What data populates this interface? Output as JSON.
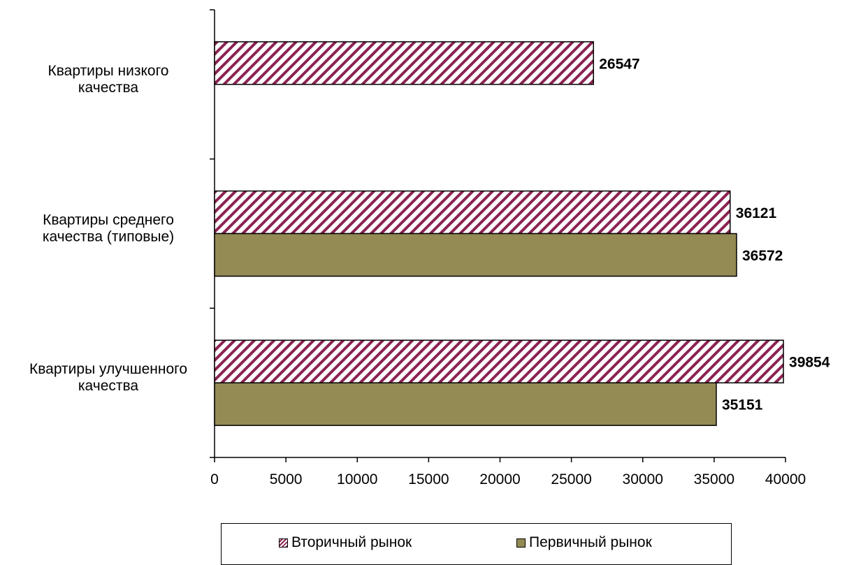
{
  "chart_data": {
    "type": "bar",
    "orientation": "horizontal",
    "categories": [
      "Квартиры низкого качества",
      "Квартиры среднего качества (типовые)",
      "Квартиры улучшенного качества"
    ],
    "category_label_lines": [
      [
        "Квартиры низкого",
        "качества"
      ],
      [
        "Квартиры среднего",
        "качества (типовые)"
      ],
      [
        "Квартиры улучшенного",
        "качества"
      ]
    ],
    "series": [
      {
        "name": "Вторичный рынок",
        "values": [
          26547,
          36121,
          39854
        ],
        "color": "#8b2252",
        "pattern": "diagonal-hatch"
      },
      {
        "name": "Первичный рынок",
        "values": [
          null,
          36572,
          35151
        ],
        "color": "#948a54",
        "pattern": "solid"
      }
    ],
    "xlim": [
      0,
      40000
    ],
    "xticks": [
      0,
      5000,
      10000,
      15000,
      20000,
      25000,
      30000,
      35000,
      40000
    ],
    "grid": false,
    "legend_position": "bottom"
  }
}
